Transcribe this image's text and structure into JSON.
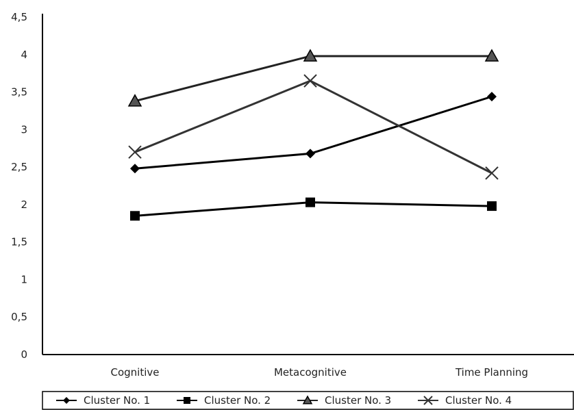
{
  "chart_data": {
    "type": "line",
    "categories": [
      "Cognitive",
      "Metacognitive",
      "Time Planning"
    ],
    "series": [
      {
        "name": "Cluster No. 1",
        "values": [
          2.48,
          2.68,
          3.44
        ],
        "marker": "diamond",
        "color": "#000000"
      },
      {
        "name": "Cluster No. 2",
        "values": [
          1.85,
          2.03,
          1.98
        ],
        "marker": "square",
        "color": "#000000"
      },
      {
        "name": "Cluster No. 3",
        "values": [
          3.38,
          3.98,
          3.98
        ],
        "marker": "triangle",
        "color": "#222222"
      },
      {
        "name": "Cluster No. 4",
        "values": [
          2.7,
          3.65,
          2.42
        ],
        "marker": "x",
        "color": "#333333"
      }
    ],
    "ylim": [
      0,
      4.5
    ],
    "yticks": [
      "0",
      "0,5",
      "1",
      "1,5",
      "2",
      "2,5",
      "3",
      "3,5",
      "4",
      "4,5"
    ],
    "ytick_values": [
      0,
      0.5,
      1,
      1.5,
      2,
      2.5,
      3,
      3.5,
      4,
      4.5
    ],
    "grid": false,
    "legend_position": "bottom"
  }
}
